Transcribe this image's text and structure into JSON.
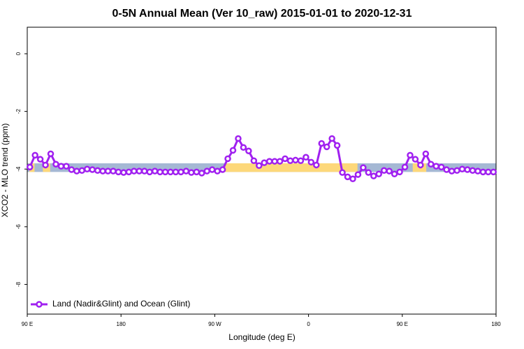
{
  "chart_data": {
    "type": "line",
    "title": "0-5N Annual Mean (Ver 10_raw)   2015-01-01 to 2020-12-31",
    "xlabel": "Longitude (deg E)",
    "ylabel": "XCO2 - MLO trend (ppm)",
    "xlim": [
      90,
      540
    ],
    "ylim": [
      -9.03,
      0.92
    ],
    "xticks": [
      {
        "value": 90,
        "label": "90 E"
      },
      {
        "value": 180,
        "label": "180"
      },
      {
        "value": 270,
        "label": "90 W"
      },
      {
        "value": 360,
        "label": "0"
      },
      {
        "value": 450,
        "label": "90 E"
      },
      {
        "value": 540,
        "label": "180"
      }
    ],
    "yticks": [
      0,
      -2,
      -4,
      -6,
      -8
    ],
    "legend": "bottom-left",
    "bands": {
      "ylim": [
        -4.1,
        -3.8
      ],
      "base_color": "#a5b8d4",
      "overlay_color": "#fdd87a",
      "overlays": [
        [
          92,
          97
        ],
        [
          105,
          112
        ],
        [
          280,
          407
        ],
        [
          460,
          473
        ]
      ]
    },
    "x": [
      92.5,
      97.5,
      102.5,
      107.5,
      112.5,
      117.5,
      122.5,
      127.5,
      132.5,
      137.5,
      142.5,
      147.5,
      152.5,
      157.5,
      162.5,
      167.5,
      172.5,
      177.5,
      182.5,
      187.5,
      192.5,
      197.5,
      202.5,
      207.5,
      212.5,
      217.5,
      222.5,
      227.5,
      232.5,
      237.5,
      242.5,
      247.5,
      252.5,
      257.5,
      262.5,
      267.5,
      272.5,
      277.5,
      282.5,
      287.5,
      292.5,
      297.5,
      302.5,
      307.5,
      312.5,
      317.5,
      322.5,
      327.5,
      332.5,
      337.5,
      342.5,
      347.5,
      352.5,
      357.5,
      362.5,
      367.5,
      372.5,
      377.5,
      382.5,
      387.5,
      392.5,
      397.5,
      402.5,
      407.5,
      412.5,
      417.5,
      422.5,
      427.5,
      432.5,
      437.5,
      442.5,
      447.5,
      452.5,
      457.5,
      462.5,
      467.5,
      472.5,
      477.5,
      482.5,
      487.5,
      492.5,
      497.5,
      502.5,
      507.5,
      512.5,
      517.5,
      522.5,
      527.5,
      532.5,
      537.5
    ],
    "series": [
      {
        "name": "Land (Nadir&Glint) and Ocean (Glint)",
        "color": "#a020f0",
        "values": [
          -3.93,
          -3.52,
          -3.66,
          -3.86,
          -3.47,
          -3.83,
          -3.9,
          -3.9,
          -4.02,
          -4.07,
          -4.05,
          -4.0,
          -4.02,
          -4.05,
          -4.07,
          -4.07,
          -4.07,
          -4.1,
          -4.12,
          -4.1,
          -4.07,
          -4.07,
          -4.07,
          -4.1,
          -4.07,
          -4.1,
          -4.1,
          -4.1,
          -4.1,
          -4.1,
          -4.07,
          -4.12,
          -4.1,
          -4.14,
          -4.07,
          -4.02,
          -4.07,
          -4.02,
          -3.64,
          -3.35,
          -2.94,
          -3.25,
          -3.37,
          -3.71,
          -3.88,
          -3.78,
          -3.73,
          -3.73,
          -3.73,
          -3.64,
          -3.71,
          -3.69,
          -3.71,
          -3.59,
          -3.76,
          -3.86,
          -3.11,
          -3.23,
          -2.94,
          -3.18,
          -4.12,
          -4.27,
          -4.34,
          -4.19,
          -3.95,
          -4.12,
          -4.24,
          -4.17,
          -4.05,
          -4.07,
          -4.17,
          -4.1,
          -3.93,
          -3.52,
          -3.66,
          -3.86,
          -3.47,
          -3.83,
          -3.9,
          -3.93,
          -4.02,
          -4.07,
          -4.05,
          -4.0,
          -4.02,
          -4.05,
          -4.07,
          -4.1,
          -4.1,
          -4.1
        ]
      }
    ]
  }
}
